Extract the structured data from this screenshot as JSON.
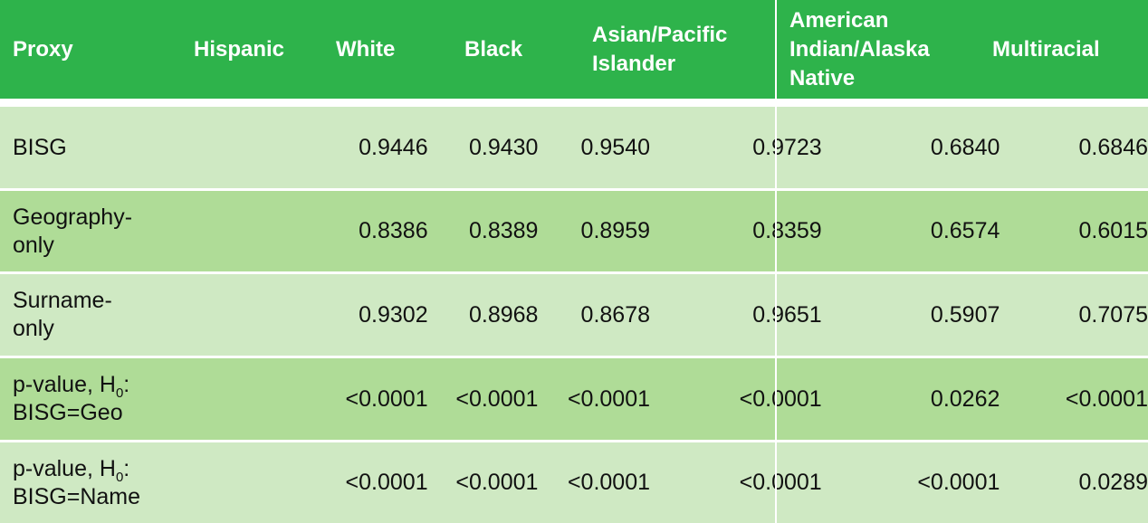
{
  "header": {
    "proxy": "Proxy",
    "hispanic": "Hispanic",
    "white": "White",
    "black": "Black",
    "asian_l1": "Asian/Pacific",
    "asian_l2": "Islander",
    "aian_l1": "American",
    "aian_l2": "Indian/Alaska",
    "aian_l3": "Native",
    "multiracial": "Multiracial"
  },
  "rows": [
    {
      "label_l1": "BISG",
      "values": [
        "0.9446",
        "0.9430",
        "0.9540",
        "0.9723",
        "0.6840",
        "0.6846"
      ]
    },
    {
      "label_l1": "Geography-",
      "label_l2": "only",
      "values": [
        "0.8386",
        "0.8389",
        "0.8959",
        "0.8359",
        "0.6574",
        "0.6015"
      ]
    },
    {
      "label_l1": "Surname-",
      "label_l2": "only",
      "values": [
        "0.9302",
        "0.8968",
        "0.8678",
        "0.9651",
        "0.5907",
        "0.7075"
      ]
    },
    {
      "label_l1_pre": "p-value, H",
      "label_l1_sub": "0",
      "label_l1_post": ":",
      "label_l2": "BISG=Geo",
      "values": [
        "<0.0001",
        "<0.0001",
        "<0.0001",
        "<0.0001",
        "0.0262",
        "<0.0001"
      ]
    },
    {
      "label_l1_pre": "p-value, H",
      "label_l1_sub": "0",
      "label_l1_post": ":",
      "label_l2": "BISG=Name",
      "values": [
        "<0.0001",
        "<0.0001",
        "<0.0001",
        "<0.0001",
        "<0.0001",
        "0.0289"
      ]
    }
  ],
  "colors": {
    "header": "#2eb34b",
    "row_light": "#cfe9c3",
    "row_mid": "#afdc97"
  }
}
